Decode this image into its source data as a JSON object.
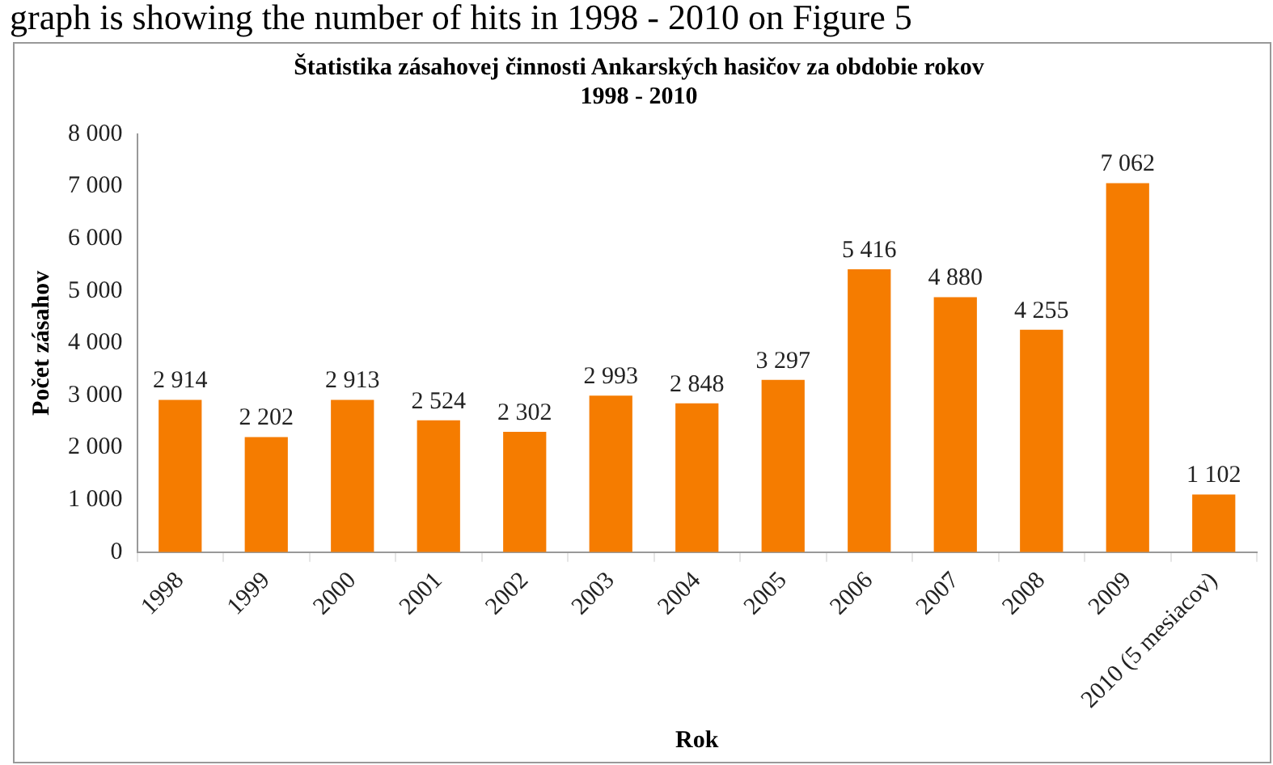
{
  "chart_data": {
    "type": "bar",
    "title": [
      "Štatistika zásahovej činnosti Ankarských hasičov za obdobie rokov",
      "1998 - 2010"
    ],
    "xlabel": "Rok",
    "ylabel": "Počet zásahov",
    "annotations": [
      "graph is showing the number of hits in 1998 - 2010 on Figure 5"
    ],
    "categories": [
      "1998",
      "1999",
      "2000",
      "2001",
      "2002",
      "2003",
      "2004",
      "2005",
      "2006",
      "2007",
      "2008",
      "2009",
      "2010 (5 mesiacov)"
    ],
    "values": [
      2914,
      2202,
      2913,
      2524,
      2302,
      2993,
      2848,
      3297,
      5416,
      4880,
      4255,
      7062,
      1102
    ],
    "value_labels": [
      "2 914",
      "2 202",
      "2 913",
      "2 524",
      "2 302",
      "2 993",
      "2 848",
      "3 297",
      "5 416",
      "4 880",
      "4 255",
      "7 062",
      "1 102"
    ],
    "color": "#f57c00",
    "ylim": [
      0,
      8000
    ],
    "yticks": [
      {
        "value": 0,
        "label": "0"
      },
      {
        "value": 1000,
        "label": "1 000"
      },
      {
        "value": 2000,
        "label": "2 000"
      },
      {
        "value": 3000,
        "label": "3 000"
      },
      {
        "value": 4000,
        "label": "4 000"
      },
      {
        "value": 5000,
        "label": "5 000"
      },
      {
        "value": 6000,
        "label": "6 000"
      },
      {
        "value": 7000,
        "label": "7 000"
      },
      {
        "value": 8000,
        "label": "8 000"
      }
    ],
    "grid": false,
    "legend": false
  }
}
